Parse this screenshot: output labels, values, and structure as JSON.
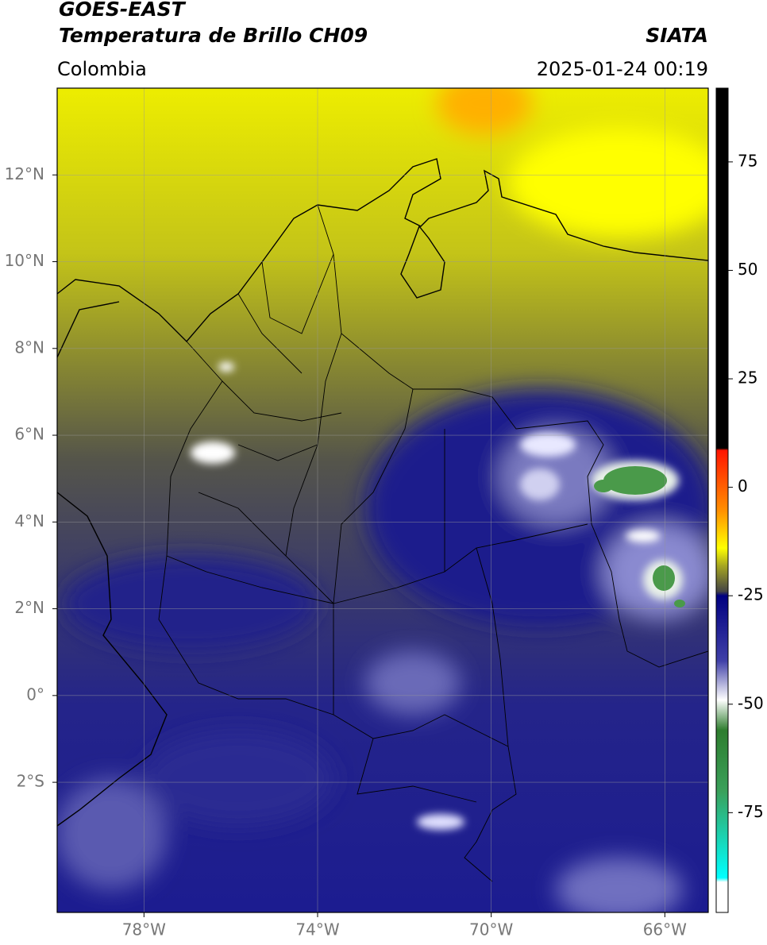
{
  "header": {
    "title": "GOES-EAST",
    "subtitle": "Temperatura de Brillo CH09",
    "source": "SIATA",
    "region": "Colombia",
    "timestamp": "2025-01-24 00:19"
  },
  "map": {
    "xlim": [
      -80,
      -65
    ],
    "ylim": [
      -5,
      14
    ],
    "xticks": [
      {
        "value": -78,
        "label": "78°W"
      },
      {
        "value": -74,
        "label": "74°W"
      },
      {
        "value": -70,
        "label": "70°W"
      },
      {
        "value": -66,
        "label": "66°W"
      }
    ],
    "yticks": [
      {
        "value": 12,
        "label": "12°N"
      },
      {
        "value": 10,
        "label": "10°N"
      },
      {
        "value": 8,
        "label": "8°N"
      },
      {
        "value": 6,
        "label": "6°N"
      },
      {
        "value": 4,
        "label": "4°N"
      },
      {
        "value": 2,
        "label": "2°N"
      },
      {
        "value": 0,
        "label": "0°"
      },
      {
        "value": -2,
        "label": "2°S"
      }
    ],
    "grid": true
  },
  "colorbar": {
    "lim": [
      -98,
      92
    ],
    "ticks": [
      75,
      50,
      25,
      0,
      -25,
      -50,
      -75
    ],
    "stops": [
      {
        "value": 92,
        "color": "#000000"
      },
      {
        "value": 9,
        "color": "#000000"
      },
      {
        "value": 8.5,
        "color": "#ff1500"
      },
      {
        "value": -5,
        "color": "#ff8c00"
      },
      {
        "value": -14,
        "color": "#ffff00"
      },
      {
        "value": -18,
        "color": "#a8a820"
      },
      {
        "value": -24,
        "color": "#454545"
      },
      {
        "value": -25,
        "color": "#000080"
      },
      {
        "value": -40,
        "color": "#4040a8"
      },
      {
        "value": -49,
        "color": "#ffffff"
      },
      {
        "value": -56,
        "color": "#2e7d2e"
      },
      {
        "value": -70,
        "color": "#3aa05a"
      },
      {
        "value": -90,
        "color": "#00ffff"
      },
      {
        "value": -91,
        "color": "#ffffff"
      },
      {
        "value": -98,
        "color": "#ffffff"
      }
    ]
  }
}
